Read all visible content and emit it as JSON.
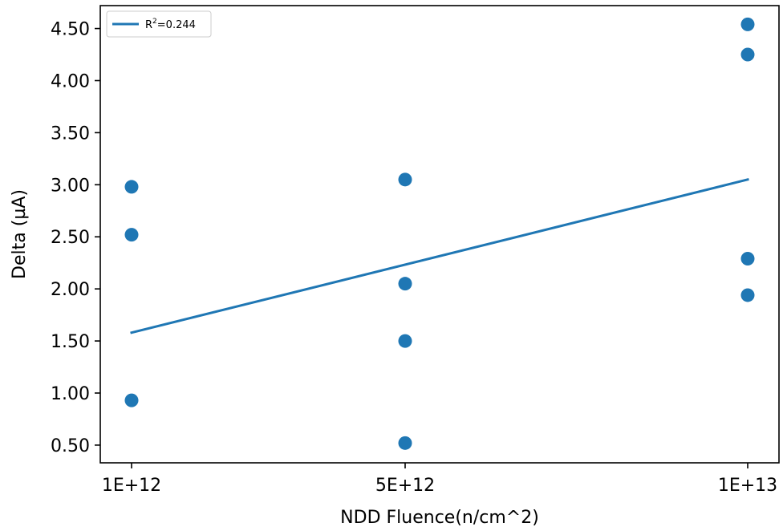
{
  "chart_data": {
    "type": "scatter",
    "xlabel": "NDD Fluence(n/cm^2)",
    "ylabel": "Delta (µA)",
    "x_categories": [
      "1E+12",
      "5E+12",
      "1E+13"
    ],
    "yticks": [
      "0.50",
      "1.00",
      "1.50",
      "2.00",
      "2.50",
      "3.00",
      "3.50",
      "4.00",
      "4.50"
    ],
    "ylim": [
      0.33,
      4.72
    ],
    "points": [
      {
        "x": "1E+12",
        "y": 2.98
      },
      {
        "x": "1E+12",
        "y": 2.52
      },
      {
        "x": "1E+12",
        "y": 0.93
      },
      {
        "x": "5E+12",
        "y": 3.05
      },
      {
        "x": "5E+12",
        "y": 2.05
      },
      {
        "x": "5E+12",
        "y": 1.5
      },
      {
        "x": "5E+12",
        "y": 0.52
      },
      {
        "x": "1E+13",
        "y": 4.54
      },
      {
        "x": "1E+13",
        "y": 4.25
      },
      {
        "x": "1E+13",
        "y": 2.29
      },
      {
        "x": "1E+13",
        "y": 1.94
      }
    ],
    "fit_line": {
      "x": [
        "1E+12",
        "1E+13"
      ],
      "y": [
        1.58,
        3.05
      ]
    },
    "legend": {
      "placement": "top-left",
      "label_prefix": "R",
      "label_superscript": "2",
      "label_suffix": "=0.244"
    },
    "grid": false,
    "color": "#1f77b4"
  }
}
